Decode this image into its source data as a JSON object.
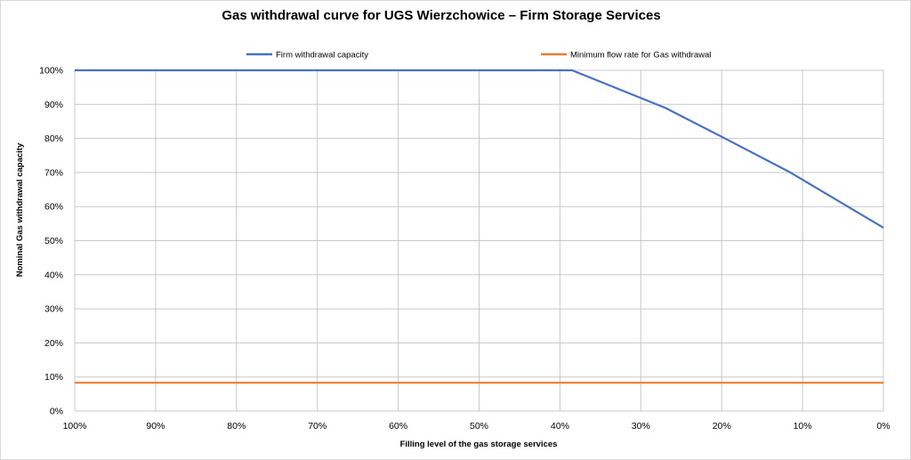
{
  "chart_data": {
    "type": "line",
    "title": "Gas withdrawal curve for UGS Wierzchowice – Firm Storage Services",
    "xlabel": "Filling level of the gas storage services",
    "ylabel": "Nominal Gas withdrawal capacity",
    "x_ticks": [
      "100%",
      "90%",
      "80%",
      "70%",
      "60%",
      "50%",
      "40%",
      "30%",
      "20%",
      "10%",
      "0%"
    ],
    "y_ticks": [
      "0%",
      "10%",
      "20%",
      "30%",
      "40%",
      "50%",
      "60%",
      "70%",
      "80%",
      "90%",
      "100%"
    ],
    "xlim": [
      100,
      0
    ],
    "ylim": [
      0,
      100
    ],
    "x_reversed": true,
    "grid": true,
    "legend_position": "top",
    "series": [
      {
        "name": "Firm withdrawal capacity",
        "color": "#4472c4",
        "points": [
          [
            100,
            100
          ],
          [
            38.5,
            100
          ],
          [
            27,
            89
          ],
          [
            20,
            80.5
          ],
          [
            11.5,
            70
          ],
          [
            0,
            53.8
          ]
        ]
      },
      {
        "name": "Minimum flow rate for Gas withdrawal",
        "color": "#ed7d31",
        "points": [
          [
            100,
            8.3
          ],
          [
            0,
            8.3
          ]
        ]
      }
    ]
  }
}
